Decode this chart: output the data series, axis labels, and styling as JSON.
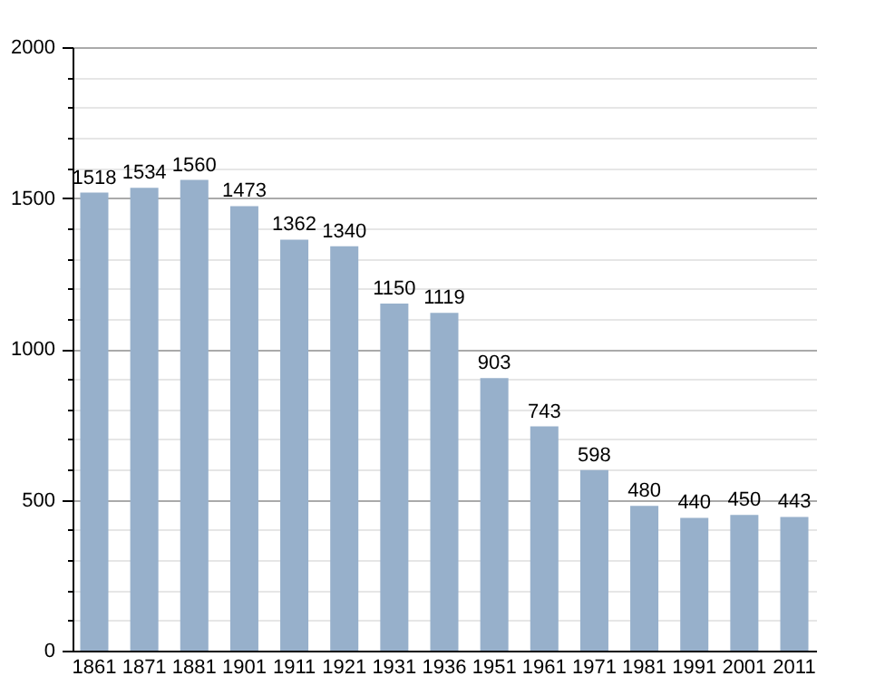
{
  "chart_data": {
    "type": "bar",
    "categories": [
      "1861",
      "1871",
      "1881",
      "1901",
      "1911",
      "1921",
      "1931",
      "1936",
      "1951",
      "1961",
      "1971",
      "1981",
      "1991",
      "2001",
      "2011"
    ],
    "values": [
      1518,
      1534,
      1560,
      1473,
      1362,
      1340,
      1150,
      1119,
      903,
      743,
      598,
      480,
      440,
      450,
      443
    ],
    "color": "#97b0cb",
    "ylim": [
      0,
      2000
    ],
    "yticks": [
      0,
      {
        "value": 100,
        "label": null
      },
      {
        "value": 200,
        "label": null
      },
      {
        "value": 300,
        "label": null
      },
      {
        "value": 400,
        "label": null
      },
      500,
      {
        "value": 600,
        "label": null
      },
      {
        "value": 700,
        "label": null
      },
      {
        "value": 800,
        "label": null
      },
      {
        "value": 900,
        "label": null
      },
      1000,
      {
        "value": 1100,
        "label": null
      },
      {
        "value": 1200,
        "label": null
      },
      {
        "value": 1300,
        "label": null
      },
      {
        "value": 1400,
        "label": null
      },
      1500,
      {
        "value": 1600,
        "label": null
      },
      {
        "value": 1700,
        "label": null
      },
      {
        "value": 1800,
        "label": null
      },
      {
        "value": 1900,
        "label": null
      },
      2000
    ],
    "grid": true,
    "data_labels": true
  }
}
